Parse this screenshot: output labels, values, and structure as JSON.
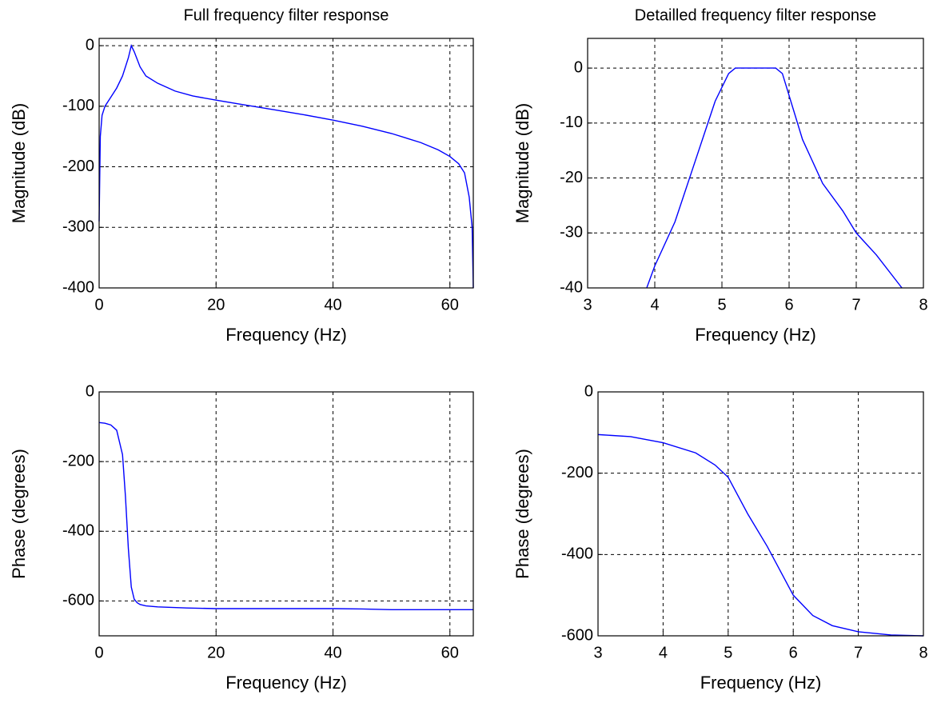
{
  "chart_data": [
    {
      "type": "line",
      "title": "Full frequency filter response",
      "x_label": "Frequency (Hz)",
      "y_label": "Magnitude (dB)",
      "xlim": [
        0,
        64
      ],
      "xticks": [
        0,
        20,
        40,
        60
      ],
      "ylim": [
        -400,
        12
      ],
      "yticks": [
        0,
        -100,
        -200,
        -300,
        -400
      ],
      "grid": true,
      "series": [
        {
          "color": "#0000ff",
          "x": [
            0,
            0.2,
            0.5,
            1,
            2,
            3,
            4,
            5,
            5.5,
            6,
            7,
            8,
            10,
            13,
            16,
            20,
            25,
            30,
            35,
            40,
            45,
            50,
            55,
            58,
            60,
            61.5,
            62.5,
            63.3,
            63.8,
            64
          ],
          "values": [
            -290,
            -150,
            -115,
            -100,
            -85,
            -70,
            -50,
            -20,
            0,
            -10,
            -35,
            -50,
            -62,
            -75,
            -83,
            -90,
            -98,
            -106,
            -114,
            -123,
            -133,
            -145,
            -160,
            -172,
            -183,
            -195,
            -210,
            -250,
            -300,
            -400
          ]
        }
      ]
    },
    {
      "type": "line",
      "title": "Detailled frequency filter response",
      "x_label": "Frequency (Hz)",
      "y_label": "Magnitude (dB)",
      "xlim": [
        3,
        8
      ],
      "xticks": [
        3,
        4,
        5,
        6,
        7,
        8
      ],
      "ylim": [
        -40,
        5.4
      ],
      "yticks": [
        0,
        -10,
        -20,
        -30,
        -40
      ],
      "grid": true,
      "series": [
        {
          "color": "#0000ff",
          "x": [
            3.88,
            4.0,
            4.3,
            4.6,
            4.9,
            5.1,
            5.2,
            5.8,
            5.9,
            6.0,
            6.2,
            6.5,
            6.8,
            7.0,
            7.3,
            7.68
          ],
          "values": [
            -40,
            -36,
            -28,
            -17,
            -6,
            -1,
            0,
            0,
            -1,
            -5,
            -13,
            -21,
            -26,
            -30,
            -34,
            -40
          ]
        }
      ]
    },
    {
      "type": "line",
      "x_label": "Frequency (Hz)",
      "y_label": "Phase (degrees)",
      "xlim": [
        0,
        64
      ],
      "xticks": [
        0,
        20,
        40,
        60
      ],
      "ylim": [
        -700,
        0
      ],
      "yticks": [
        0,
        -200,
        -400,
        -600
      ],
      "grid": true,
      "series": [
        {
          "color": "#0000ff",
          "x": [
            0,
            1,
            2,
            3,
            4,
            4.5,
            5,
            5.5,
            6,
            6.5,
            7,
            8,
            10,
            15,
            20,
            30,
            40,
            45,
            50,
            60,
            64
          ],
          "values": [
            -88,
            -90,
            -95,
            -110,
            -180,
            -300,
            -450,
            -560,
            -595,
            -605,
            -610,
            -614,
            -617,
            -620,
            -622,
            -622,
            -622,
            -623,
            -625,
            -625,
            -625
          ]
        }
      ]
    },
    {
      "type": "line",
      "x_label": "Frequency (Hz)",
      "y_label": "Phase (degrees)",
      "xlim": [
        3,
        8
      ],
      "xticks": [
        3,
        4,
        5,
        6,
        7,
        8
      ],
      "ylim": [
        -600,
        0
      ],
      "yticks": [
        0,
        -200,
        -400,
        -600
      ],
      "grid": true,
      "series": [
        {
          "color": "#0000ff",
          "x": [
            3,
            3.5,
            4,
            4.5,
            4.8,
            5,
            5.3,
            5.6,
            6,
            6.3,
            6.6,
            7,
            7.5,
            8
          ],
          "values": [
            -105,
            -110,
            -125,
            -150,
            -180,
            -210,
            -300,
            -380,
            -500,
            -550,
            -575,
            -590,
            -598,
            -600
          ]
        }
      ]
    }
  ]
}
